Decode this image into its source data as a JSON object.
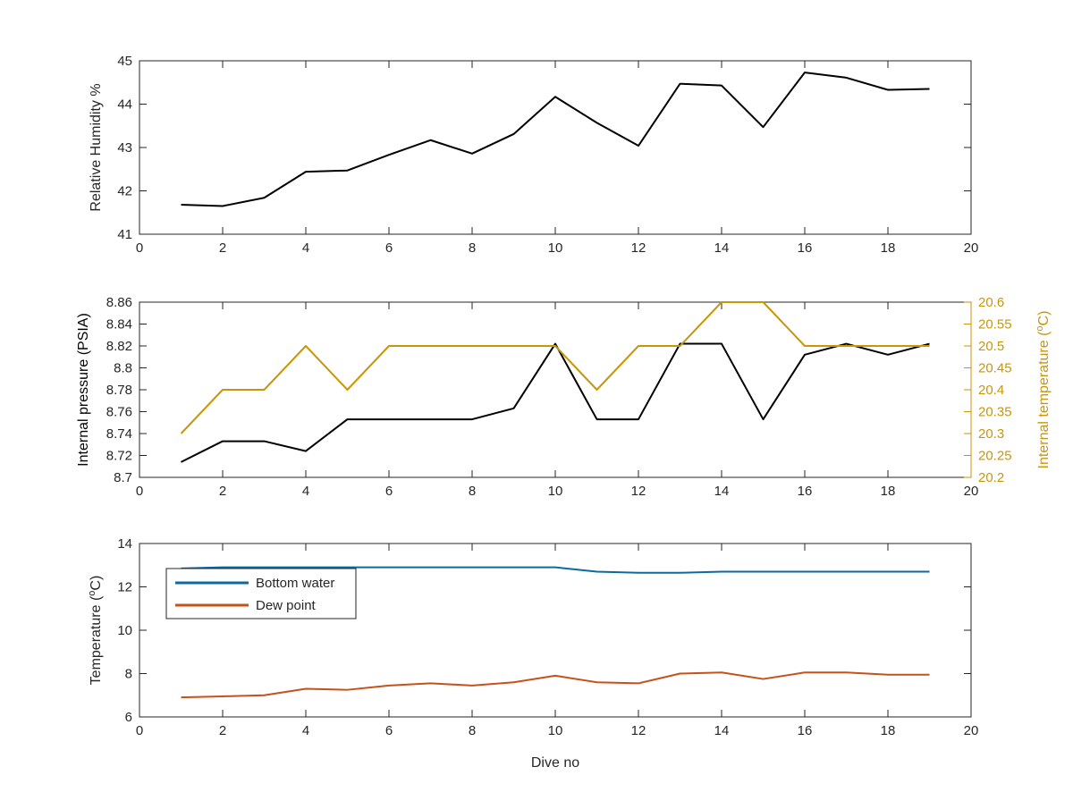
{
  "colors": {
    "black": "#000000",
    "gold": "#c8960a",
    "blue": "#0b6aa0",
    "orange": "#c5511b",
    "axis": "#262626"
  },
  "chart_data": [
    {
      "type": "line",
      "xlabel": "",
      "ylabel": "Relative Humidity %",
      "xlim": [
        0,
        20
      ],
      "ylim": [
        41,
        45
      ],
      "xticks": [
        0,
        2,
        4,
        6,
        8,
        10,
        12,
        14,
        16,
        18,
        20
      ],
      "yticks": [
        41,
        42,
        43,
        44,
        45
      ],
      "x": [
        1,
        2,
        3,
        4,
        5,
        6,
        7,
        8,
        9,
        10,
        11,
        12,
        13,
        14,
        15,
        16,
        17,
        18,
        19
      ],
      "series": [
        {
          "values": [
            41.68,
            41.65,
            41.84,
            42.44,
            42.47,
            42.83,
            43.17,
            42.86,
            43.31,
            44.17,
            43.57,
            43.04,
            44.47,
            44.43,
            43.47,
            44.73,
            44.61,
            44.33,
            44.35
          ]
        }
      ]
    },
    {
      "type": "line",
      "xlabel": "",
      "ylabel": "Internal pressure (PSIA)",
      "ylabel_right": "Internal temperature (°C)",
      "xlim": [
        0,
        20
      ],
      "ylim": [
        8.7,
        8.86
      ],
      "ylim_right": [
        20.2,
        20.6
      ],
      "xticks": [
        0,
        2,
        4,
        6,
        8,
        10,
        12,
        14,
        16,
        18,
        20
      ],
      "yticks": [
        "8.7",
        "8.72",
        "8.74",
        "8.76",
        "8.78",
        "8.8",
        "8.82",
        "8.84",
        "8.86"
      ],
      "yticks_right": [
        "20.2",
        "20.25",
        "20.3",
        "20.35",
        "20.4",
        "20.45",
        "20.5",
        "20.55",
        "20.6"
      ],
      "x": [
        1,
        2,
        3,
        4,
        5,
        6,
        7,
        8,
        9,
        10,
        11,
        12,
        13,
        14,
        15,
        16,
        17,
        18,
        19
      ],
      "series": [
        {
          "axis": "left",
          "values": [
            8.714,
            8.733,
            8.733,
            8.724,
            8.753,
            8.753,
            8.753,
            8.753,
            8.763,
            8.822,
            8.753,
            8.753,
            8.822,
            8.822,
            8.753,
            8.812,
            8.822,
            8.812,
            8.822
          ]
        },
        {
          "axis": "right",
          "values": [
            20.3,
            20.4,
            20.4,
            20.5,
            20.4,
            20.5,
            20.5,
            20.5,
            20.5,
            20.5,
            20.4,
            20.5,
            20.5,
            20.6,
            20.6,
            20.5,
            20.5,
            20.5,
            20.5
          ]
        }
      ]
    },
    {
      "type": "line",
      "xlabel": "Dive no",
      "ylabel": "Temperature (°C)",
      "xlim": [
        0,
        20
      ],
      "ylim": [
        6,
        14
      ],
      "xticks": [
        0,
        2,
        4,
        6,
        8,
        10,
        12,
        14,
        16,
        18,
        20
      ],
      "yticks": [
        6,
        8,
        10,
        12,
        14
      ],
      "legend_position": "top-left",
      "x": [
        1,
        2,
        3,
        4,
        5,
        6,
        7,
        8,
        9,
        10,
        11,
        12,
        13,
        14,
        15,
        16,
        17,
        18,
        19
      ],
      "series": [
        {
          "name": "Bottom water",
          "values": [
            12.85,
            12.9,
            12.9,
            12.9,
            12.9,
            12.9,
            12.9,
            12.9,
            12.9,
            12.9,
            12.7,
            12.65,
            12.65,
            12.7,
            12.7,
            12.7,
            12.7,
            12.7,
            12.7
          ]
        },
        {
          "name": "Dew point",
          "values": [
            6.9,
            6.95,
            7.0,
            7.3,
            7.25,
            7.45,
            7.55,
            7.45,
            7.6,
            7.9,
            7.6,
            7.55,
            8.0,
            8.05,
            7.75,
            8.05,
            8.05,
            7.95,
            7.95
          ]
        }
      ]
    }
  ]
}
